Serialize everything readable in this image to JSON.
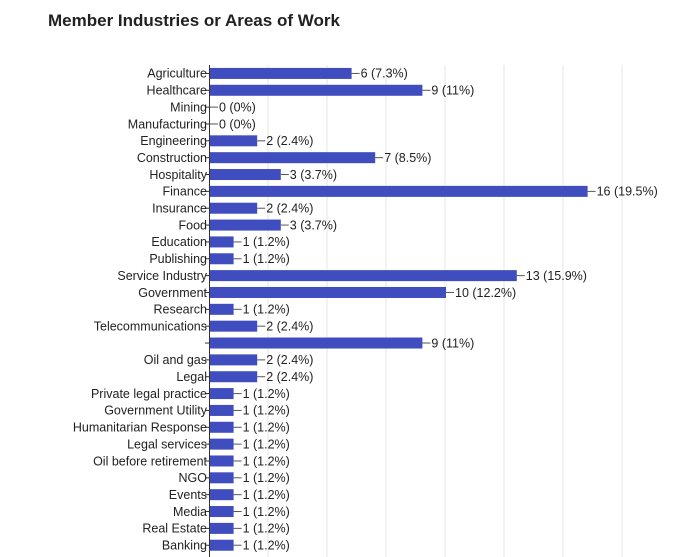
{
  "chart_data": {
    "type": "bar",
    "orientation": "horizontal",
    "title": "Member Industries or Areas of Work",
    "xlabel": "",
    "ylabel": "",
    "xlim": [
      0,
      18
    ],
    "grid": true,
    "bar_color": "#3f4dbf",
    "grid_color": "#e6e6e6",
    "categories": [
      "Agriculture",
      "Healthcare",
      "Mining",
      "Manufacturing",
      "Engineering",
      "Construction",
      "Hospitality",
      "Finance",
      "Insurance",
      "Food",
      "Education",
      "Publishing",
      "Service Industry",
      "Government",
      "Research",
      "Telecommunications",
      "",
      "Oil and gas",
      "Legal",
      "Private legal practice",
      "Government Utility",
      "Humanitarian Response",
      "Legal services",
      "Oil before retirement",
      "NGO",
      "Events",
      "Media",
      "Real Estate",
      "Banking"
    ],
    "values": [
      6,
      9,
      0,
      0,
      2,
      7,
      3,
      16,
      2,
      3,
      1,
      1,
      13,
      10,
      1,
      2,
      9,
      2,
      2,
      1,
      1,
      1,
      1,
      1,
      1,
      1,
      1,
      1,
      1
    ],
    "value_labels": [
      "6 (7.3%)",
      "9 (11%)",
      "0 (0%)",
      "0 (0%)",
      "2 (2.4%)",
      "7 (8.5%)",
      "3 (3.7%)",
      "16 (19.5%)",
      "2 (2.4%)",
      "3 (3.7%)",
      "1 (1.2%)",
      "1 (1.2%)",
      "13 (15.9%)",
      "10 (12.2%)",
      "1 (1.2%)",
      "2 (2.4%)",
      "9 (11%)",
      "2 (2.4%)",
      "2 (2.4%)",
      "1 (1.2%)",
      "1 (1.2%)",
      "1 (1.2%)",
      "1 (1.2%)",
      "1 (1.2%)",
      "1 (1.2%)",
      "1 (1.2%)",
      "1 (1.2%)",
      "1 (1.2%)",
      "1 (1.2%)"
    ]
  }
}
